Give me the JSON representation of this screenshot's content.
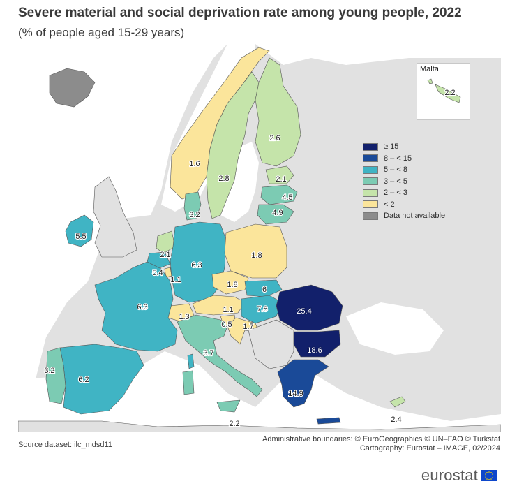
{
  "title": "Severe material and social deprivation rate among young people, 2022",
  "subtitle": "(% of people aged 15-29 years)",
  "legend": {
    "items": [
      {
        "label": "≥ 15",
        "color": "#12206b"
      },
      {
        "label": "8 – < 15",
        "color": "#1a4a98"
      },
      {
        "label": "5 – < 8",
        "color": "#40b4c4"
      },
      {
        "label": "3 – < 5",
        "color": "#7ccbb3"
      },
      {
        "label": "2 – < 3",
        "color": "#c5e4aa"
      },
      {
        "label": "< 2",
        "color": "#fbe59b"
      },
      {
        "label": "Data not available",
        "color": "#8c8c8c"
      }
    ]
  },
  "inset": {
    "title": "Malta",
    "value": "2.2"
  },
  "values": {
    "iceland": "",
    "norway": "1.6",
    "sweden": "2.8",
    "finland": "2.6",
    "estonia": "2.1",
    "latvia": "4.5",
    "lithuania": "4.9",
    "denmark": "3.2",
    "ireland": "5.5",
    "netherlands": "2.1",
    "belgium": "5.4",
    "luxembourg": "1.1",
    "germany": "6.3",
    "poland": "1.8",
    "czechia": "1.8",
    "slovakia": "6",
    "austria": "1.1",
    "hungary": "7.8",
    "romania": "25.4",
    "bulgaria": "18.6",
    "slovenia": "0.5",
    "croatia": "1.7",
    "switzerland": "1.3",
    "france": "6.3",
    "italy": "3.7",
    "malta_main": "2.2",
    "portugal": "3.2",
    "spain": "6.2",
    "greece": "14.9",
    "cyprus": "2.4"
  },
  "colors": {
    "sea": "#ffffff",
    "nonEU": "#e1e1e1",
    "borders": "#555555"
  },
  "footer": {
    "source": "Source dataset: ilc_mdsd11",
    "boundaries": "Administrative boundaries: © EuroGeographics © UN–FAO © Turkstat",
    "cartography": "Cartography: Eurostat – IMAGE, 02/2024"
  },
  "brand": "eurostat"
}
